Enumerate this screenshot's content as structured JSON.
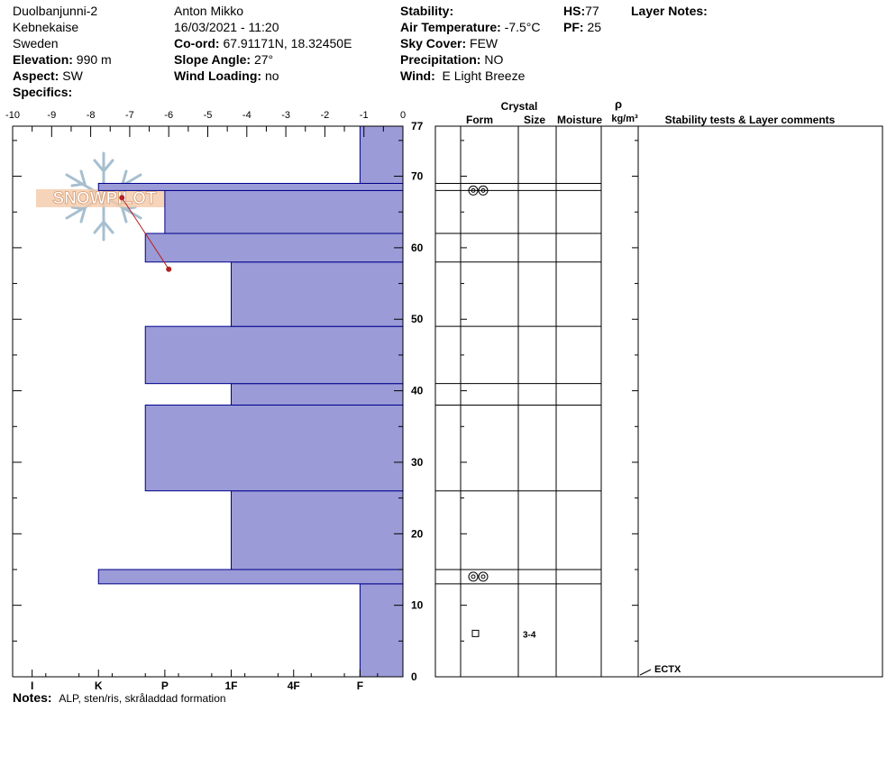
{
  "site": {
    "name": "Duolbanjunni-2",
    "region": "Kebnekaise",
    "country": "Sweden",
    "elevation_label": "Elevation:",
    "elevation": "990 m",
    "aspect_label": "Aspect:",
    "aspect": "SW",
    "specifics_label": "Specifics:"
  },
  "observer": {
    "name": "Anton Mikko",
    "datetime": "16/03/2021 - 11:20",
    "coord_label": "Co-ord:",
    "coord": "67.91171N, 18.32450E",
    "slope_label": "Slope Angle:",
    "slope": "27°",
    "wind_loading_label": "Wind Loading:",
    "wind_loading": "no"
  },
  "conditions": {
    "stability_label": "Stability:",
    "air_temp_label": "Air Temperature:",
    "air_temp": "-7.5°C",
    "sky_label": "Sky Cover:",
    "sky": "FEW",
    "precip_label": "Precipitation:",
    "precip": "NO",
    "wind_label": "Wind:",
    "wind": "E Light Breeze"
  },
  "snowpack": {
    "hs_label": "HS:",
    "hs": "77",
    "pf_label": "PF:",
    "pf": "25",
    "layer_notes_label": "Layer Notes:"
  },
  "table_headers": {
    "crystal": "Crystal",
    "form": "Form",
    "size": "Size",
    "moisture": "Moisture",
    "rho": "ρ",
    "density_unit": "kg/m³",
    "stability": "Stability tests & Layer comments"
  },
  "notes": {
    "label": "Notes:",
    "text": "ALP, sten/ris, skråladdad formation"
  },
  "logo_text": "SNOWPILOT",
  "colors": {
    "hardness_fill": "#9b9bd8",
    "hardness_stroke": "#00008b",
    "temp": "#b22222"
  },
  "chart_data": {
    "type": "bar",
    "description_axes": "snow profile: hardness bars by height, temperature profile",
    "temp_axis_ticks": [
      "-10",
      "-9",
      "-8",
      "-7",
      "-6",
      "-5",
      "-4",
      "-3",
      "-2",
      "-1",
      "0"
    ],
    "temp_range": [
      -10,
      0
    ],
    "hardness_ticks": [
      "I",
      "K",
      "P",
      "1F",
      "4F",
      "F"
    ],
    "height_range": [
      0,
      77
    ],
    "height_ticks": [
      "0",
      "10",
      "20",
      "30",
      "40",
      "50",
      "60",
      "70",
      "77"
    ],
    "layers": [
      {
        "bottom": 0,
        "top": 13,
        "hardness_temp_equiv": -1.1
      },
      {
        "bottom": 13,
        "top": 15,
        "hardness_temp_equiv": -7.8
      },
      {
        "bottom": 15,
        "top": 26,
        "hardness_temp_equiv": -4.4
      },
      {
        "bottom": 26,
        "top": 38,
        "hardness_temp_equiv": -6.6
      },
      {
        "bottom": 38,
        "top": 41,
        "hardness_temp_equiv": -4.4
      },
      {
        "bottom": 41,
        "top": 49,
        "hardness_temp_equiv": -6.6
      },
      {
        "bottom": 49,
        "top": 58,
        "hardness_temp_equiv": -4.4
      },
      {
        "bottom": 58,
        "top": 62,
        "hardness_temp_equiv": -6.6
      },
      {
        "bottom": 62,
        "top": 68,
        "hardness_temp_equiv": -6.1
      },
      {
        "bottom": 68,
        "top": 69,
        "hardness_temp_equiv": -7.8
      },
      {
        "bottom": 69,
        "top": 77,
        "hardness_temp_equiv": -1.1
      }
    ],
    "temperature_profile": [
      {
        "height": 67,
        "temp": -7.2
      },
      {
        "height": 57,
        "temp": -6.0
      }
    ],
    "layer_boundaries": [
      13,
      15,
      26,
      38,
      41,
      49,
      58,
      62,
      68,
      69,
      77
    ],
    "crystals": [
      {
        "height": 14,
        "form": "melt-forms-icon"
      },
      {
        "height": 68,
        "form": "melt-forms-icon"
      },
      {
        "height": 6,
        "form": "faceted-icon",
        "size": "3-4"
      }
    ],
    "tests": [
      {
        "height": 0,
        "label": "ECTX"
      }
    ]
  }
}
